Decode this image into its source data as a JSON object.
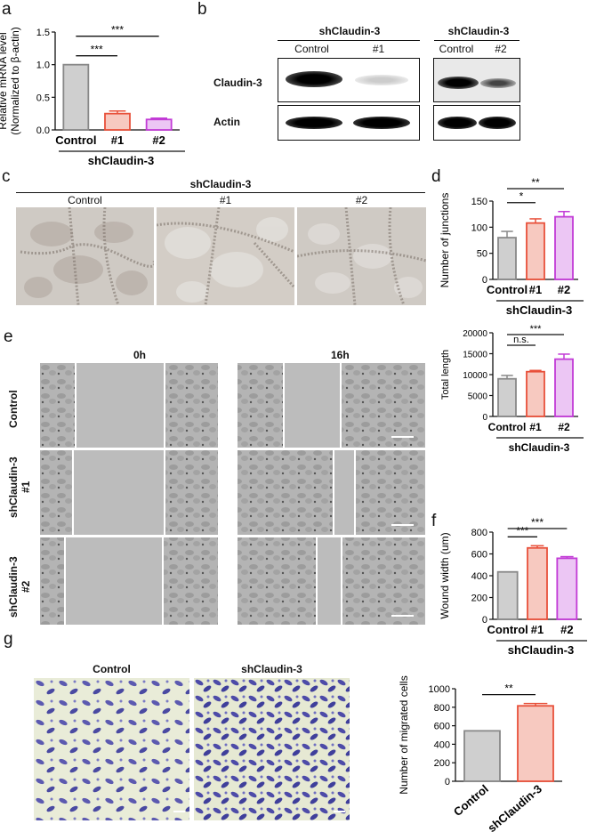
{
  "panels": {
    "a": "a",
    "b": "b",
    "c": "c",
    "d": "d",
    "e": "e",
    "f": "f",
    "g": "g"
  },
  "shared": {
    "group": "shClaudin-3"
  },
  "blot": {
    "header1": "shClaudin-3",
    "header2": "shClaudin-3",
    "lanes1": [
      "Control",
      "#1"
    ],
    "lanes2": [
      "Control",
      "#2"
    ],
    "row1": "Claudin-3",
    "row2": "Actin"
  },
  "panel_c": {
    "header": "shClaudin-3",
    "labels": [
      "Control",
      "#1",
      "#2"
    ]
  },
  "panel_e": {
    "time0": "0h",
    "time16": "16h",
    "rows": [
      "Control",
      "shClaudin-3\n#1",
      "shClaudin-3\n#2"
    ]
  },
  "panel_g": {
    "labels": [
      "Control",
      "shClaudin-3"
    ]
  },
  "chart_data": [
    {
      "id": "a",
      "type": "bar",
      "ylabel": "Relative mRNA level\n(Normalized to β-actin)",
      "categories": [
        "Control",
        "#1",
        "#2"
      ],
      "values": [
        1.0,
        0.25,
        0.16
      ],
      "errors": [
        0.0,
        0.04,
        0.02
      ],
      "ylim": [
        0,
        1.5
      ],
      "yticks": [
        "0.0",
        "0.5",
        "1.0",
        "1.5"
      ],
      "group_label": "shClaudin-3",
      "colors": [
        "#888888",
        "#e8503a",
        "#c23bd6"
      ],
      "fills": [
        "#cfcfcf",
        "#f7c9c0",
        "#ecc6f4"
      ],
      "significance": [
        {
          "from": 0,
          "to": 1,
          "label": "***"
        },
        {
          "from": 0,
          "to": 2,
          "label": "***"
        }
      ]
    },
    {
      "id": "d1",
      "type": "bar",
      "ylabel": "Number of junctions",
      "categories": [
        "Control",
        "#1",
        "#2"
      ],
      "values": [
        80,
        108,
        120
      ],
      "errors": [
        12,
        8,
        10
      ],
      "ylim": [
        0,
        150
      ],
      "yticks": [
        "0",
        "50",
        "100",
        "150"
      ],
      "group_label": "shClaudin-3",
      "colors": [
        "#888888",
        "#e8503a",
        "#c23bd6"
      ],
      "fills": [
        "#cfcfcf",
        "#f7c9c0",
        "#ecc6f4"
      ],
      "significance": [
        {
          "from": 0,
          "to": 1,
          "label": "*"
        },
        {
          "from": 0,
          "to": 2,
          "label": "**"
        }
      ]
    },
    {
      "id": "d2",
      "type": "bar",
      "ylabel": "Total length",
      "categories": [
        "Control",
        "#1",
        "#2"
      ],
      "values": [
        9000,
        10700,
        13700
      ],
      "errors": [
        800,
        300,
        1200
      ],
      "ylim": [
        0,
        20000
      ],
      "yticks": [
        "0",
        "5000",
        "10000",
        "15000",
        "20000"
      ],
      "group_label": "shClaudin-3",
      "colors": [
        "#888888",
        "#e8503a",
        "#c23bd6"
      ],
      "fills": [
        "#cfcfcf",
        "#f7c9c0",
        "#ecc6f4"
      ],
      "significance": [
        {
          "from": 0,
          "to": 1,
          "label": "n.s."
        },
        {
          "from": 0,
          "to": 2,
          "label": "***"
        }
      ]
    },
    {
      "id": "f",
      "type": "bar",
      "ylabel": "Wound width (um)",
      "categories": [
        "Control",
        "#1",
        "#2"
      ],
      "values": [
        435,
        655,
        560
      ],
      "errors": [
        0,
        20,
        15
      ],
      "ylim": [
        0,
        800
      ],
      "yticks": [
        "0",
        "200",
        "400",
        "600",
        "800"
      ],
      "group_label": "shClaudin-3",
      "colors": [
        "#888888",
        "#e8503a",
        "#c23bd6"
      ],
      "fills": [
        "#cfcfcf",
        "#f7c9c0",
        "#ecc6f4"
      ],
      "significance": [
        {
          "from": 0,
          "to": 1,
          "label": "***"
        },
        {
          "from": 0,
          "to": 2,
          "label": "***"
        }
      ]
    },
    {
      "id": "g",
      "type": "bar",
      "ylabel": "Number of migrated cells",
      "categories": [
        "Control",
        "shClaudin-3"
      ],
      "values": [
        545,
        815
      ],
      "errors": [
        0,
        25
      ],
      "ylim": [
        0,
        1000
      ],
      "yticks": [
        "0",
        "200",
        "400",
        "600",
        "800",
        "1000"
      ],
      "colors": [
        "#888888",
        "#e8503a"
      ],
      "fills": [
        "#cfcfcf",
        "#f7c9c0"
      ],
      "rotate_labels": true,
      "significance": [
        {
          "from": 0,
          "to": 1,
          "label": "**"
        }
      ]
    }
  ]
}
